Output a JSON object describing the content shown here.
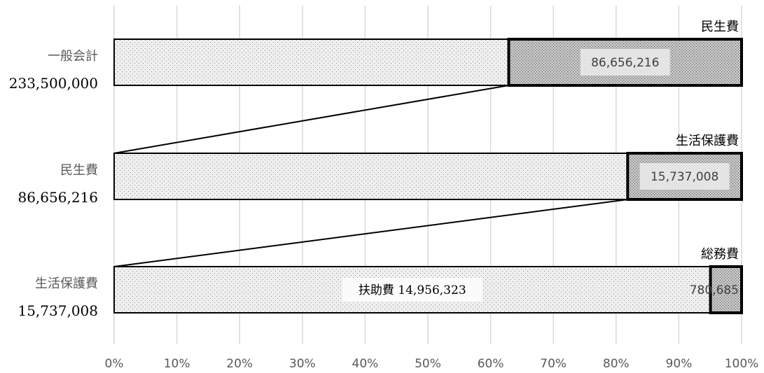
{
  "chart_data": {
    "type": "bar",
    "stacking": "percent",
    "orientation": "horizontal",
    "xlim": [
      0,
      100
    ],
    "x_unit": "%",
    "x_ticks": [
      "0%",
      "10%",
      "20%",
      "30%",
      "40%",
      "50%",
      "60%",
      "70%",
      "80%",
      "90%",
      "100%"
    ],
    "grid": true,
    "categories": [
      {
        "name": "一般会計",
        "total": 233500000,
        "total_label": "233,500,000"
      },
      {
        "name": "民生費",
        "total": 86656216,
        "total_label": "86,656,216"
      },
      {
        "name": "生活保護費",
        "total": 15737008,
        "total_label": "15,737,008"
      }
    ],
    "bars": [
      {
        "category": "一般会計",
        "segments": [
          {
            "value": 146843784,
            "label": "",
            "style": "light"
          },
          {
            "value": 86656216,
            "label": "86,656,216",
            "title": "民生費",
            "style": "dark"
          }
        ]
      },
      {
        "category": "民生費",
        "segments": [
          {
            "value": 70919208,
            "label": "",
            "style": "light"
          },
          {
            "value": 15737008,
            "label": "15,737,008",
            "title": "生活保護費",
            "style": "dark"
          }
        ]
      },
      {
        "category": "生活保護費",
        "segments": [
          {
            "value": 14956323,
            "label": "扶助費  14,956,323",
            "style": "light"
          },
          {
            "value": 780685,
            "label": "780,685",
            "title": "総務費",
            "style": "dark"
          }
        ]
      }
    ],
    "colors": {
      "light_fill": "#ececec",
      "dark_fill": "#b9b9b9",
      "border": "#000000",
      "grid": "#d9d9d9"
    }
  }
}
